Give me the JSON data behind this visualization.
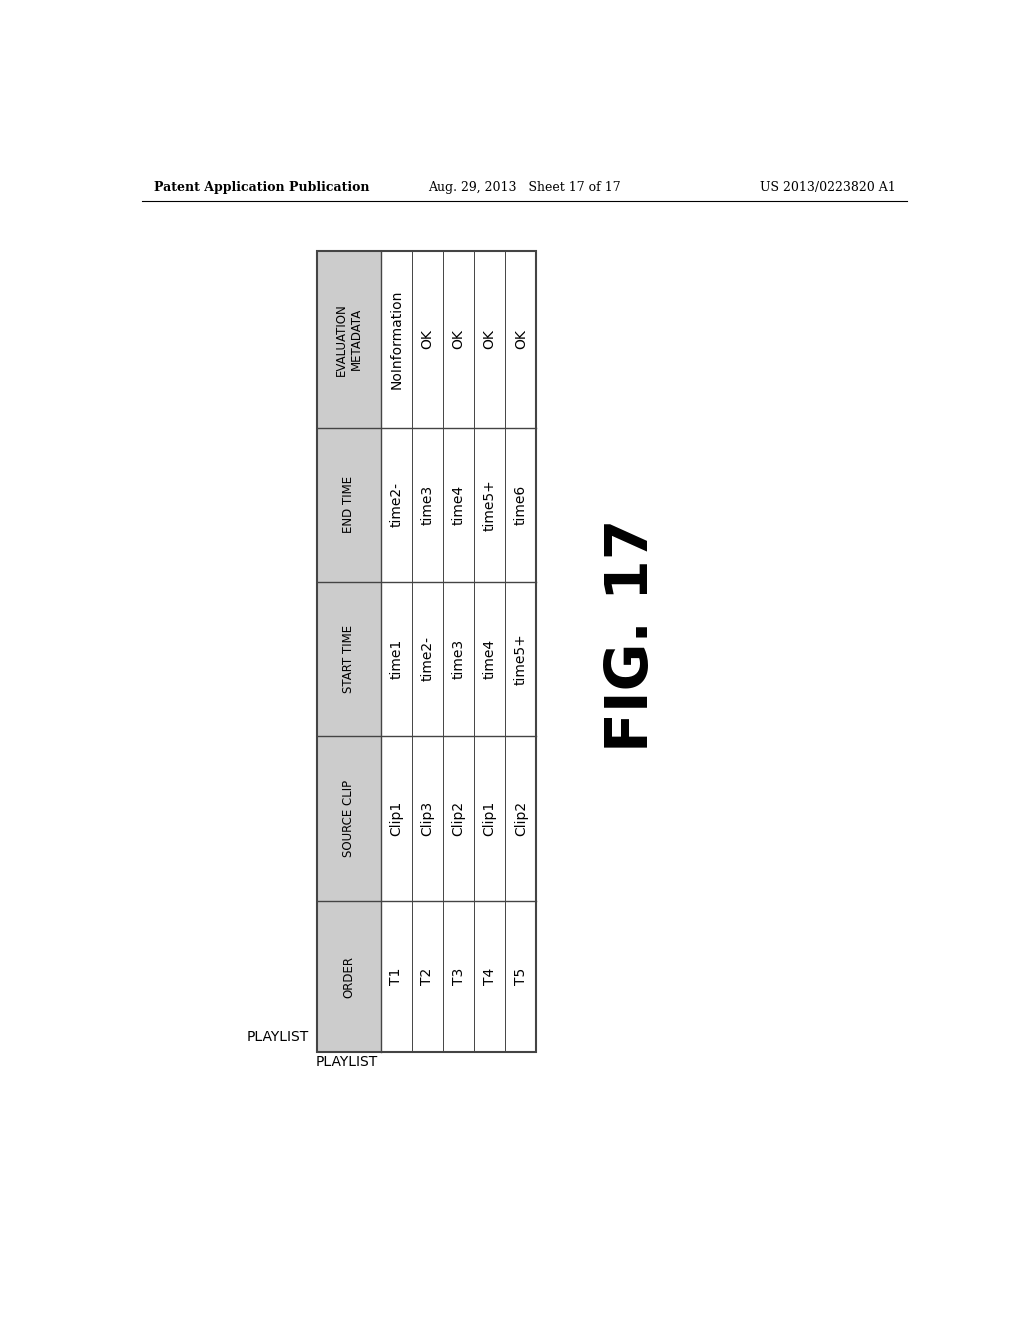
{
  "page_header_left": "Patent Application Publication",
  "page_header_middle": "Aug. 29, 2013   Sheet 17 of 17",
  "page_header_right": "US 2013/0223820 A1",
  "table_label": "PLAYLIST",
  "fig_label": "FIG. 17",
  "columns": [
    "ORDER",
    "SOURCE CLIP",
    "START TIME",
    "END TIME",
    "EVALUATION\nMETADATA"
  ],
  "rows": [
    [
      "T1",
      "Clip1",
      "time1",
      "time2-",
      "NoInformation"
    ],
    [
      "T2",
      "Clip3",
      "time2-",
      "time3",
      "OK"
    ],
    [
      "T3",
      "Clip2",
      "time3",
      "time4",
      "OK"
    ],
    [
      "T4",
      "Clip1",
      "time4",
      "time5+",
      "OK"
    ],
    [
      "T5",
      "Clip2",
      "time5+",
      "time6",
      "OK"
    ]
  ],
  "bg_color": "#ffffff",
  "header_bg": "#cccccc",
  "cell_bg": "#ffffff",
  "grid_color": "#444444",
  "text_color": "#000000",
  "header_fontsize": 8.5,
  "cell_fontsize": 10,
  "playlist_fontsize": 10,
  "fig_label_fontsize": 42
}
